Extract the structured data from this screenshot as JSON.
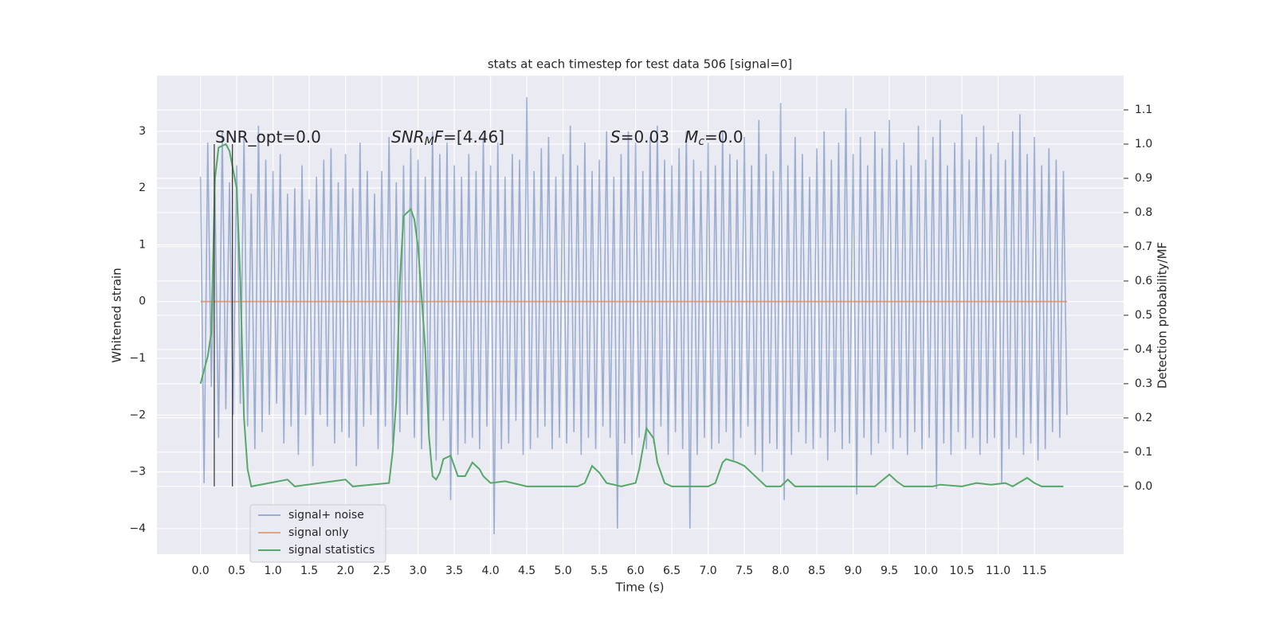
{
  "chart_data": {
    "type": "line",
    "title": "stats at each timestep for test data 506 [signal=0]",
    "xlabel": "Time (s)",
    "ylabel": "Whitened strain",
    "y2label": "Detection probability/MF",
    "xlim": [
      -0.6,
      12.73
    ],
    "ylim": [
      -4.45,
      3.98
    ],
    "y2lim": [
      -0.198,
      1.2
    ],
    "xticks": [
      {
        "value": 0,
        "label": "0.0"
      },
      0.5,
      {
        "value": 1,
        "label": "1.0"
      },
      1.5,
      {
        "value": 2,
        "label": "2.0"
      },
      2.5,
      {
        "value": 3,
        "label": "3.0"
      },
      3.5,
      {
        "value": 4,
        "label": "4.0"
      },
      4.5,
      {
        "value": 5,
        "label": "5.0"
      },
      5.5,
      {
        "value": 6,
        "label": "6.0"
      },
      6.5,
      {
        "value": 7,
        "label": "7.0"
      },
      7.5,
      {
        "value": 8,
        "label": "8.0"
      },
      8.5,
      {
        "value": 9,
        "label": "9.0"
      },
      9.5,
      {
        "value": 10,
        "label": "10.0"
      },
      10.5,
      {
        "value": 11,
        "label": "11.0"
      },
      11.5
    ],
    "yticks": [
      {
        "value": -4,
        "label": "−4"
      },
      {
        "value": -3,
        "label": "−3"
      },
      {
        "value": -2,
        "label": "−2"
      },
      {
        "value": -1,
        "label": "−1"
      },
      0,
      1,
      2,
      3
    ],
    "y2ticks": [
      {
        "value": 0,
        "label": "0.0"
      },
      0.1,
      0.2,
      0.3,
      0.4,
      0.5,
      0.6,
      0.7,
      0.8,
      0.9,
      {
        "value": 1,
        "label": "1.0"
      },
      1.1
    ],
    "grid": true,
    "legend": "lower left",
    "series": [
      {
        "name": "signal+ noise",
        "color": "#4c72b0",
        "opacity": 0.5,
        "x": [
          0,
          0.05,
          0.1,
          0.15,
          0.2,
          0.25,
          0.3,
          0.35,
          0.4,
          0.45,
          0.5,
          0.55,
          0.6,
          0.65,
          0.7,
          0.75,
          0.8,
          0.85,
          0.9,
          0.95,
          1,
          1.05,
          1.1,
          1.15,
          1.2,
          1.25,
          1.3,
          1.35,
          1.4,
          1.45,
          1.5,
          1.55,
          1.6,
          1.65,
          1.7,
          1.75,
          1.8,
          1.85,
          1.9,
          1.95,
          2,
          2.05,
          2.1,
          2.15,
          2.2,
          2.25,
          2.3,
          2.35,
          2.4,
          2.45,
          2.5,
          2.55,
          2.6,
          2.65,
          2.7,
          2.75,
          2.8,
          2.85,
          2.9,
          2.95,
          3,
          3.05,
          3.1,
          3.15,
          3.2,
          3.25,
          3.3,
          3.35,
          3.4,
          3.45,
          3.5,
          3.55,
          3.6,
          3.65,
          3.7,
          3.75,
          3.8,
          3.85,
          3.9,
          3.95,
          4,
          4.05,
          4.1,
          4.15,
          4.2,
          4.25,
          4.3,
          4.35,
          4.4,
          4.45,
          4.5,
          4.55,
          4.6,
          4.65,
          4.7,
          4.75,
          4.8,
          4.85,
          4.9,
          4.95,
          5,
          5.05,
          5.1,
          5.15,
          5.2,
          5.25,
          5.3,
          5.35,
          5.4,
          5.45,
          5.5,
          5.55,
          5.6,
          5.65,
          5.7,
          5.75,
          5.8,
          5.85,
          5.9,
          5.95,
          6,
          6.05,
          6.1,
          6.15,
          6.2,
          6.25,
          6.3,
          6.35,
          6.4,
          6.45,
          6.5,
          6.55,
          6.6,
          6.65,
          6.7,
          6.75,
          6.8,
          6.85,
          6.9,
          6.95,
          7,
          7.05,
          7.1,
          7.15,
          7.2,
          7.25,
          7.3,
          7.35,
          7.4,
          7.45,
          7.5,
          7.55,
          7.6,
          7.65,
          7.7,
          7.75,
          7.8,
          7.85,
          7.9,
          7.95,
          8,
          8.05,
          8.1,
          8.15,
          8.2,
          8.25,
          8.3,
          8.35,
          8.4,
          8.45,
          8.5,
          8.55,
          8.6,
          8.65,
          8.7,
          8.75,
          8.8,
          8.85,
          8.9,
          8.95,
          9,
          9.05,
          9.1,
          9.15,
          9.2,
          9.25,
          9.3,
          9.35,
          9.4,
          9.45,
          9.5,
          9.55,
          9.6,
          9.65,
          9.7,
          9.75,
          9.8,
          9.85,
          9.9,
          9.95,
          10,
          10.05,
          10.1,
          10.15,
          10.2,
          10.25,
          10.3,
          10.35,
          10.4,
          10.45,
          10.5,
          10.55,
          10.6,
          10.65,
          10.7,
          10.75,
          10.8,
          10.85,
          10.9,
          10.95,
          11,
          11.05,
          11.1,
          11.15,
          11.2,
          11.25,
          11.3,
          11.35,
          11.4,
          11.45,
          11.5,
          11.55,
          11.6,
          11.65,
          11.7,
          11.75,
          11.8,
          11.85,
          11.9,
          11.95
        ],
        "values": [
          2.2,
          -3.2,
          2.8,
          -1.5,
          1.9,
          -2.4,
          3.0,
          -1.9,
          2.1,
          -2.0,
          2.4,
          -1.8,
          2.9,
          -2.2,
          1.9,
          -2.6,
          3.1,
          -2.3,
          2.5,
          -2.0,
          2.3,
          -1.8,
          2.6,
          -2.5,
          1.9,
          -2.2,
          2.0,
          -2.7,
          2.4,
          -2.0,
          1.8,
          -2.9,
          2.2,
          -2.0,
          2.5,
          -2.2,
          2.7,
          -2.5,
          2.1,
          -2.3,
          2.6,
          -2.4,
          2.0,
          -2.9,
          2.8,
          -2.2,
          2.3,
          -2.0,
          1.9,
          -2.6,
          2.3,
          -2.2,
          2.9,
          -2.5,
          2.1,
          -2.3,
          2.4,
          -2.0,
          2.7,
          -2.4,
          2.5,
          -2.6,
          2.2,
          -2.3,
          3.0,
          -2.8,
          2.6,
          -2.1,
          2.8,
          -3.5,
          2.4,
          -2.7,
          2.2,
          -2.5,
          2.6,
          -2.4,
          2.3,
          -2.6,
          2.9,
          -2.2,
          2.4,
          -4.1,
          2.8,
          -2.6,
          2.2,
          -2.5,
          2.6,
          -2.1,
          2.5,
          -2.7,
          3.6,
          -2.6,
          2.3,
          -2.4,
          2.7,
          -2.2,
          2.9,
          -2.6,
          2.2,
          -2.4,
          2.6,
          -2.5,
          3.1,
          -2.3,
          2.4,
          -2.7,
          2.8,
          -2.4,
          2.3,
          -2.6,
          2.5,
          -2.2,
          3.0,
          -2.4,
          2.2,
          -4.0,
          2.6,
          -2.5,
          3.0,
          -2.7,
          2.8,
          -2.4,
          2.3,
          -2.6,
          2.9,
          -2.5,
          3.1,
          -2.2,
          2.5,
          -2.7,
          2.4,
          -2.3,
          2.7,
          -2.6,
          3.0,
          -4.0,
          2.5,
          -2.7,
          2.3,
          -2.4,
          2.8,
          -2.6,
          2.4,
          -2.5,
          3.0,
          -2.3,
          2.6,
          -2.8,
          2.5,
          -2.4,
          2.9,
          -2.2,
          2.4,
          -2.7,
          3.2,
          -3.0,
          2.6,
          -2.5,
          2.3,
          -2.6,
          3.5,
          -3.5,
          2.4,
          -2.7,
          2.9,
          -2.3,
          2.6,
          -2.5,
          2.2,
          -2.6,
          2.7,
          -2.4,
          3.0,
          -2.8,
          2.5,
          -2.3,
          2.8,
          -2.6,
          3.4,
          -2.5,
          2.6,
          -3.4,
          2.9,
          -2.4,
          2.4,
          -2.7,
          3.0,
          -2.5,
          2.7,
          -2.3,
          3.2,
          -2.6,
          2.5,
          -2.4,
          2.8,
          -2.7,
          2.4,
          -2.3,
          3.1,
          -2.6,
          2.5,
          -2.4,
          2.9,
          -3.3,
          3.2,
          -2.5,
          2.4,
          -2.7,
          2.8,
          -2.3,
          3.3,
          -2.6,
          2.5,
          -2.4,
          2.9,
          -2.7,
          3.1,
          -2.5,
          2.6,
          -2.4,
          2.8,
          -3.2,
          2.5,
          -2.6,
          3.0,
          -2.4,
          3.3,
          -2.7,
          2.6,
          -2.5,
          2.9,
          -2.8,
          2.4,
          -2.6,
          2.7,
          -2.3,
          2.5,
          -2.4,
          2.3,
          -2.0
        ]
      },
      {
        "name": "signal only",
        "color": "#dd8452",
        "opacity": 0.7,
        "x": [
          0,
          11.95
        ],
        "values": [
          0,
          0
        ]
      },
      {
        "name": "signal statistics",
        "color": "#55a868",
        "opacity": 1,
        "axis": "y2",
        "x": [
          0,
          0.1,
          0.15,
          0.2,
          0.25,
          0.35,
          0.4,
          0.5,
          0.55,
          0.6,
          0.65,
          0.7,
          1.2,
          1.3,
          2.0,
          2.1,
          2.6,
          2.65,
          2.7,
          2.75,
          2.8,
          2.9,
          2.95,
          3.0,
          3.1,
          3.15,
          3.2,
          3.25,
          3.3,
          3.35,
          3.45,
          3.55,
          3.65,
          3.75,
          3.85,
          3.9,
          4.0,
          4.2,
          4.5,
          5.2,
          5.3,
          5.4,
          5.5,
          5.6,
          5.8,
          6.0,
          6.05,
          6.15,
          6.25,
          6.3,
          6.4,
          6.5,
          7.0,
          7.1,
          7.2,
          7.25,
          7.4,
          7.5,
          7.6,
          7.7,
          7.8,
          8.0,
          8.1,
          8.2,
          9.3,
          9.5,
          9.6,
          9.7,
          10.1,
          10.2,
          10.5,
          10.7,
          10.9,
          11.1,
          11.2,
          11.4,
          11.5,
          11.6,
          11.9
        ],
        "values": [
          0.3,
          0.38,
          0.45,
          0.9,
          0.99,
          1.0,
          0.98,
          0.87,
          0.6,
          0.2,
          0.05,
          0.0,
          0.02,
          0.0,
          0.02,
          0.0,
          0.01,
          0.1,
          0.25,
          0.6,
          0.79,
          0.81,
          0.78,
          0.7,
          0.4,
          0.15,
          0.03,
          0.02,
          0.04,
          0.08,
          0.09,
          0.03,
          0.03,
          0.07,
          0.05,
          0.03,
          0.01,
          0.015,
          0.0,
          0.0,
          0.01,
          0.06,
          0.04,
          0.01,
          0.0,
          0.01,
          0.05,
          0.17,
          0.14,
          0.07,
          0.01,
          0.0,
          0.0,
          0.01,
          0.07,
          0.08,
          0.07,
          0.06,
          0.04,
          0.02,
          0.0,
          0.0,
          0.02,
          0.0,
          0.0,
          0.035,
          0.015,
          0.0,
          0.0,
          0.005,
          0.0,
          0.01,
          0.005,
          0.01,
          0.0,
          0.025,
          0.01,
          0.0,
          0.0
        ]
      }
    ],
    "vlines": {
      "x": [
        0.19,
        0.44
      ],
      "ymin": 0,
      "ymax": 1,
      "axis": "y2",
      "color": "#333333"
    },
    "annotations": [
      {
        "parts": [
          {
            "text": "SNR_opt=0.0"
          }
        ]
      },
      {
        "parts": [
          {
            "text": "SNR",
            "italic": true
          },
          {
            "text": "M",
            "italic": true,
            "sub": true
          },
          {
            "text": "F",
            "italic": true
          },
          {
            "text": "=[4.46]"
          }
        ]
      },
      {
        "parts": [
          {
            "text": "S",
            "italic": true
          },
          {
            "text": "=0.03   "
          },
          {
            "text": "M",
            "italic": true
          },
          {
            "text": "c",
            "italic": true,
            "sub": true
          },
          {
            "text": "=0.0"
          }
        ]
      }
    ]
  }
}
